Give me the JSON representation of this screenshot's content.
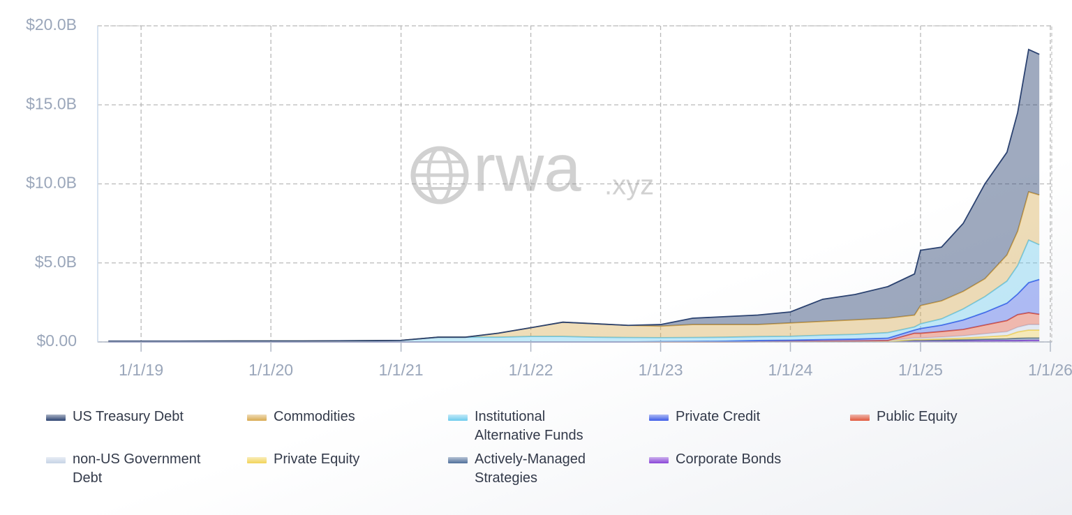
{
  "chart_data": {
    "type": "stacked-area",
    "watermark": {
      "brand": "rwa",
      "suffix": ".xyz"
    },
    "x": [
      "2018-10-01",
      "2019-04-01",
      "2019-10-01",
      "2020-04-01",
      "2020-10-01",
      "2021-01-01",
      "2021-04-15",
      "2021-07-01",
      "2021-10-01",
      "2022-01-01",
      "2022-04-01",
      "2022-07-01",
      "2022-10-01",
      "2023-01-01",
      "2023-04-01",
      "2023-07-01",
      "2023-10-01",
      "2024-01-01",
      "2024-04-01",
      "2024-07-01",
      "2024-10-01",
      "2024-12-15",
      "2025-01-01",
      "2025-03-01",
      "2025-05-01",
      "2025-07-01",
      "2025-09-01",
      "2025-10-01",
      "2025-11-01",
      "2025-12-01"
    ],
    "xlim": [
      "2018-09-01",
      "2026-01-05"
    ],
    "xticks": [
      {
        "value": "2019-01-01",
        "label": "1/1/19"
      },
      {
        "value": "2020-01-01",
        "label": "1/1/20"
      },
      {
        "value": "2021-01-01",
        "label": "1/1/21"
      },
      {
        "value": "2022-01-01",
        "label": "1/1/22"
      },
      {
        "value": "2023-01-01",
        "label": "1/1/23"
      },
      {
        "value": "2024-01-01",
        "label": "1/1/24"
      },
      {
        "value": "2025-01-01",
        "label": "1/1/25"
      },
      {
        "value": "2026-01-01",
        "label": "1/1/26"
      }
    ],
    "ylim": [
      0,
      20
    ],
    "yticks": [
      {
        "value": 0,
        "label": "$0.00"
      },
      {
        "value": 5,
        "label": "$5.0B"
      },
      {
        "value": 10,
        "label": "$10.0B"
      },
      {
        "value": 15,
        "label": "$15.0B"
      },
      {
        "value": 20,
        "label": "$20.0B"
      }
    ],
    "grid": true,
    "series": [
      {
        "name": "US Treasury Debt",
        "color": "#2b4270",
        "values": [
          0,
          0,
          0,
          0,
          0,
          0,
          0,
          0,
          0,
          0,
          0,
          0,
          0,
          0.1,
          0.4,
          0.5,
          0.6,
          0.7,
          1.4,
          1.6,
          2.0,
          2.6,
          3.5,
          3.4,
          4.3,
          6.0,
          6.5,
          7.5,
          9.0,
          8.9
        ]
      },
      {
        "name": "Commodities",
        "color": "#d8a94e",
        "values": [
          0,
          0,
          0,
          0,
          0,
          0,
          0,
          0,
          0.25,
          0.55,
          0.9,
          0.85,
          0.77,
          0.73,
          0.82,
          0.8,
          0.76,
          0.84,
          0.87,
          0.92,
          0.91,
          0.75,
          1.15,
          1.14,
          1.11,
          1.13,
          1.65,
          2.17,
          3.05,
          3.15
        ]
      },
      {
        "name": "Institutional Alternative Funds",
        "color": "#6ccbee",
        "values": [
          0.05,
          0.05,
          0.06,
          0.06,
          0.08,
          0.1,
          0.3,
          0.3,
          0.3,
          0.35,
          0.35,
          0.3,
          0.28,
          0.25,
          0.25,
          0.25,
          0.25,
          0.25,
          0.28,
          0.3,
          0.35,
          0.2,
          0.3,
          0.4,
          0.7,
          1.0,
          1.4,
          1.8,
          2.7,
          2.2
        ]
      },
      {
        "name": "Private Credit",
        "color": "#3d5ce8",
        "values": [
          0,
          0,
          0,
          0,
          0,
          0,
          0,
          0,
          0,
          0,
          0,
          0,
          0,
          0.02,
          0.03,
          0.05,
          0.07,
          0.08,
          0.1,
          0.12,
          0.15,
          0.2,
          0.3,
          0.4,
          0.6,
          0.8,
          1.1,
          1.3,
          1.9,
          2.2
        ]
      },
      {
        "name": "Public Equity",
        "color": "#e2583c",
        "values": [
          0,
          0,
          0,
          0,
          0,
          0,
          0,
          0,
          0,
          0,
          0,
          0,
          0,
          0,
          0,
          0,
          0,
          0,
          0,
          0,
          0,
          0.3,
          0.3,
          0.35,
          0.4,
          0.55,
          0.7,
          0.8,
          0.75,
          0.65
        ]
      },
      {
        "name": "non-US Government Debt",
        "color": "#c6d3e6",
        "values": [
          0,
          0,
          0,
          0,
          0,
          0,
          0,
          0,
          0,
          0,
          0,
          0,
          0,
          0,
          0,
          0,
          0,
          0,
          0.02,
          0.03,
          0.05,
          0.1,
          0.1,
          0.12,
          0.15,
          0.2,
          0.25,
          0.3,
          0.35,
          0.35
        ]
      },
      {
        "name": "Private Equity",
        "color": "#f2d357",
        "values": [
          0,
          0,
          0,
          0,
          0,
          0,
          0,
          0,
          0,
          0,
          0,
          0,
          0,
          0,
          0,
          0,
          0,
          0,
          0,
          0,
          0,
          0.05,
          0.05,
          0.08,
          0.1,
          0.15,
          0.2,
          0.4,
          0.5,
          0.5
        ]
      },
      {
        "name": "Actively-Managed Strategies",
        "color": "#4f6f9a",
        "values": [
          0,
          0,
          0,
          0,
          0,
          0,
          0,
          0,
          0,
          0,
          0,
          0,
          0,
          0,
          0,
          0,
          0,
          0,
          0,
          0,
          0,
          0.05,
          0.05,
          0.06,
          0.08,
          0.1,
          0.12,
          0.15,
          0.15,
          0.15
        ]
      },
      {
        "name": "Corporate Bonds",
        "color": "#8a45d8",
        "values": [
          0,
          0,
          0,
          0,
          0,
          0,
          0,
          0,
          0,
          0,
          0,
          0,
          0,
          0,
          0,
          0,
          0.02,
          0.03,
          0.03,
          0.03,
          0.04,
          0.05,
          0.05,
          0.05,
          0.06,
          0.07,
          0.08,
          0.08,
          0.1,
          0.1
        ]
      }
    ]
  }
}
